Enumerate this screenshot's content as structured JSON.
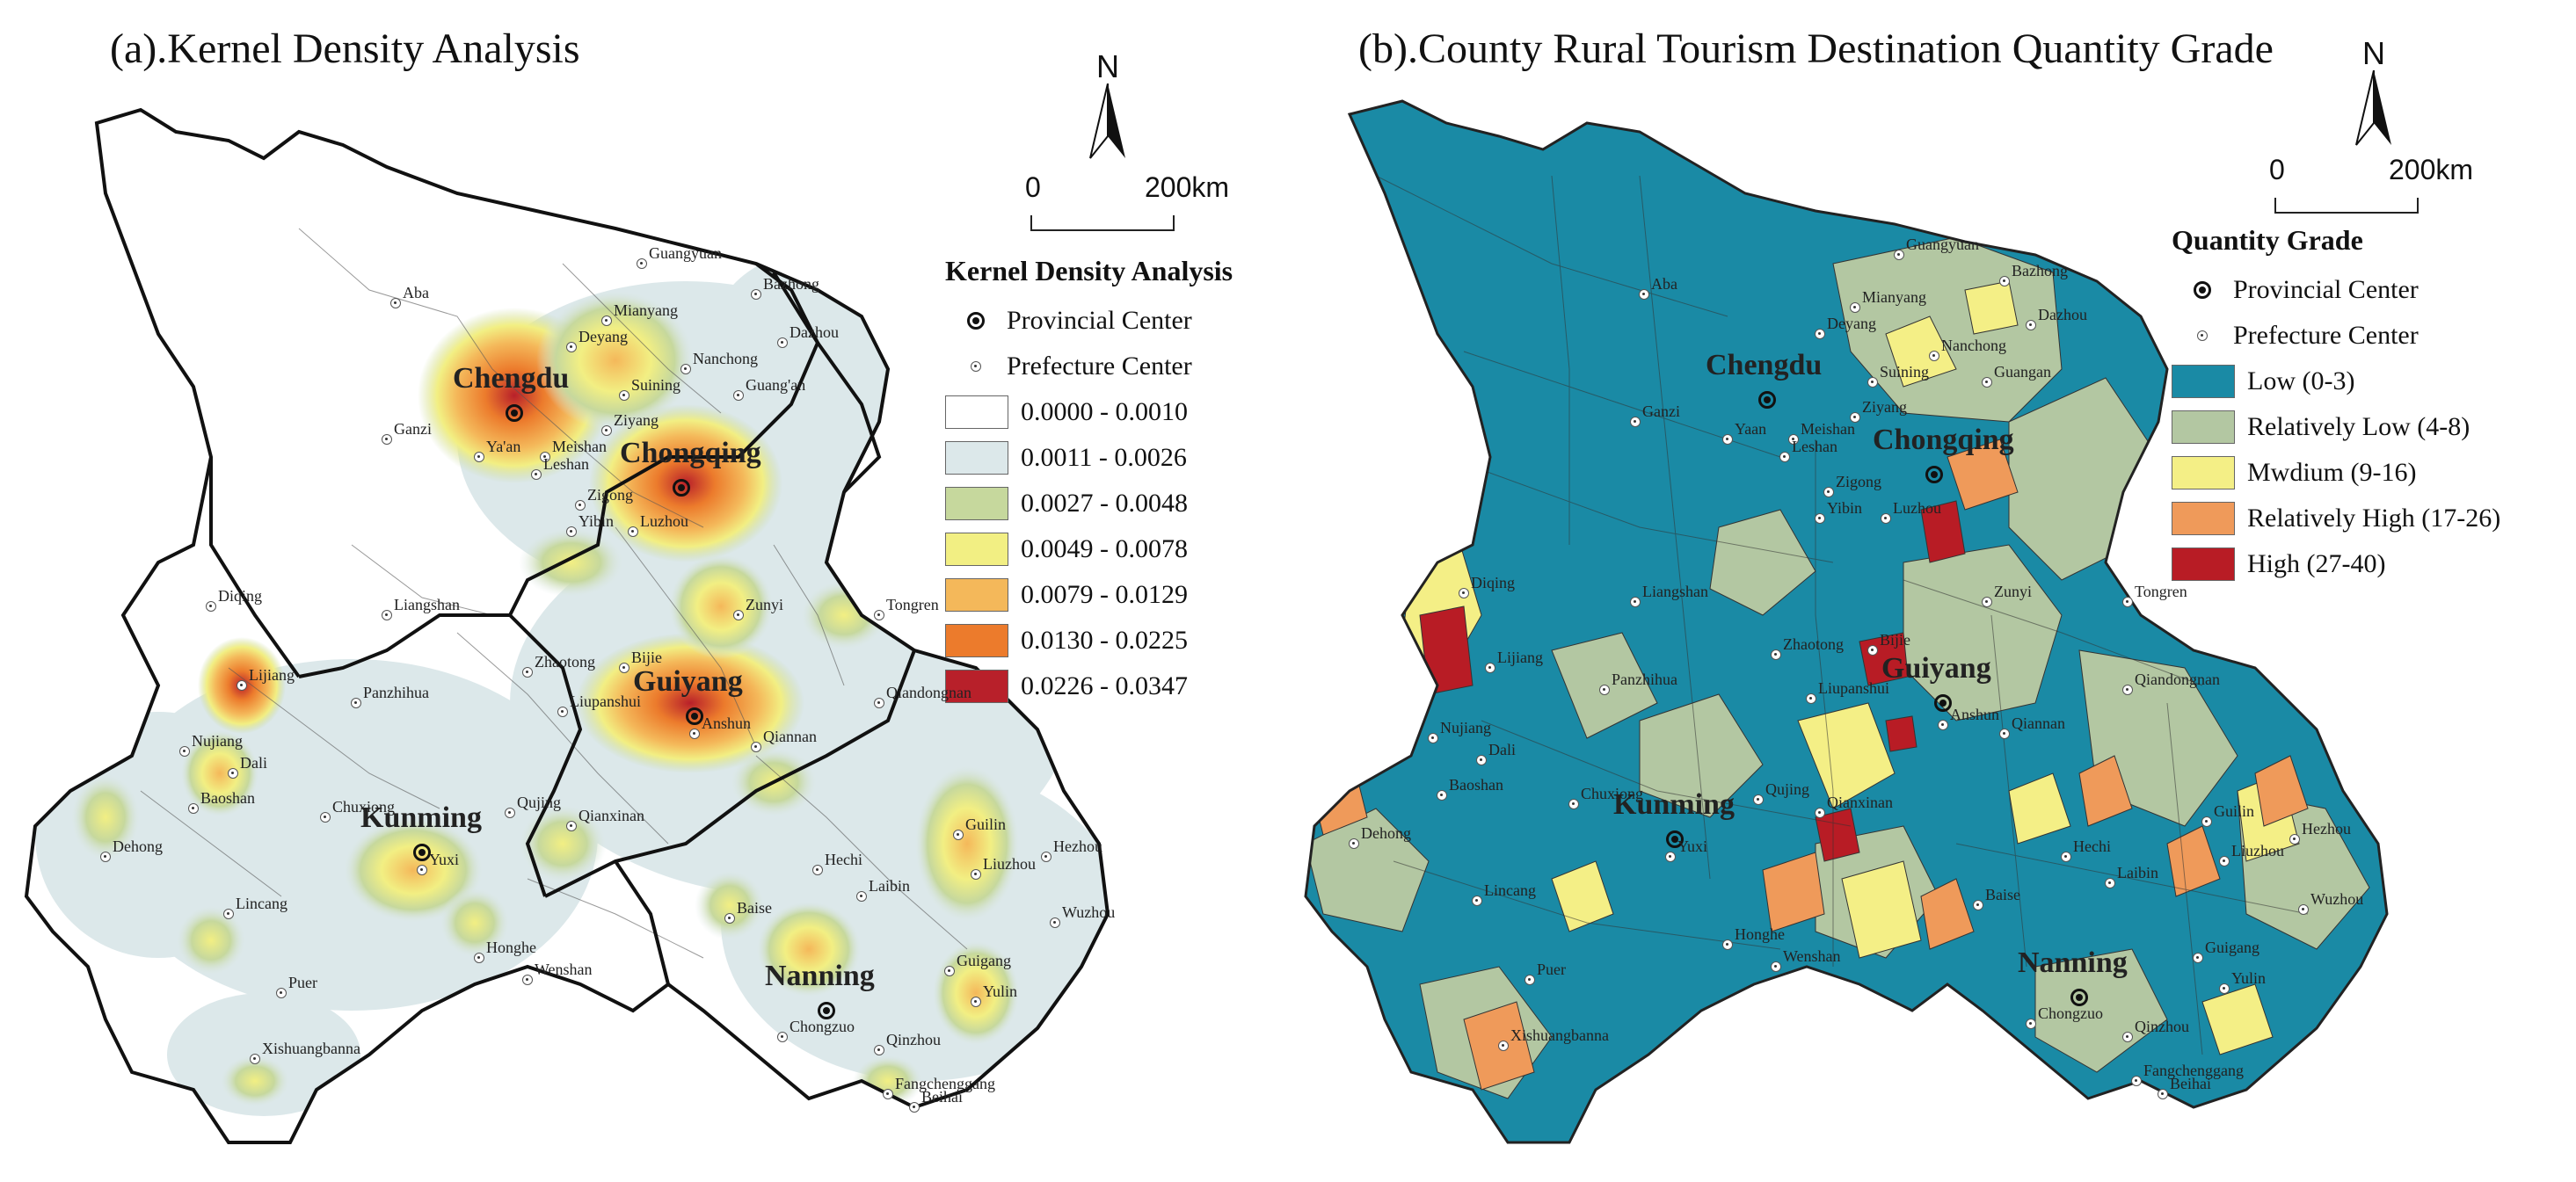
{
  "panel_a": {
    "title": "(a).Kernel Density Analysis",
    "north_label": "N",
    "scale": {
      "zero": "0",
      "distance": "200km"
    },
    "legend": {
      "title": "Kernel Density Analysis",
      "provincial_center": "Provincial  Center",
      "prefecture_center": "Prefecture  Center",
      "classes": [
        {
          "label": "0.0000 - 0.0010",
          "color": "#ffffff"
        },
        {
          "label": "0.0011 - 0.0026",
          "color": "#dce8ea"
        },
        {
          "label": "0.0027 - 0.0048",
          "color": "#c6d89d"
        },
        {
          "label": "0.0049 - 0.0078",
          "color": "#f2ef83"
        },
        {
          "label": "0.0079 - 0.0129",
          "color": "#f4b85a"
        },
        {
          "label": "0.0130 - 0.0225",
          "color": "#ec7b2c"
        },
        {
          "label": "0.0226 - 0.0347",
          "color": "#b8202a"
        }
      ]
    },
    "provincial_centers": [
      "Chengdu",
      "Chongqing",
      "Guiyang",
      "Kunming",
      "Nanning"
    ],
    "prefecture_centers": [
      "Aba",
      "Guangyuan",
      "Bazhong",
      "Mianyang",
      "Dazhou",
      "Deyang",
      "Nanchong",
      "Suining",
      "Guang'an",
      "Ganzi",
      "Ya'an",
      "Ziyang",
      "Meishan",
      "Leshan",
      "Zigong",
      "Yibin",
      "Luzhou",
      "Diqing",
      "Liangshan",
      "Zunyi",
      "Tongren",
      "Lijiang",
      "Zhaotong",
      "Bijie",
      "Panzhihua",
      "Liupanshui",
      "Anshun",
      "Qiandongnan",
      "Qiannan",
      "Nujiang",
      "Dali",
      "Baoshan",
      "Chuxiong",
      "Qujing",
      "Qianxinan",
      "Guilin",
      "Hezhou",
      "Dehong",
      "Yuxi",
      "Hechi",
      "Liuzhou",
      "Lincang",
      "Baise",
      "Laibin",
      "Wuzhou",
      "Honghe",
      "Wenshan",
      "Guigang",
      "Yulin",
      "Puer",
      "Chongzuo",
      "Qinzhou",
      "Xishuangbanna",
      "Fangchenggang",
      "Beihai"
    ]
  },
  "panel_b": {
    "title": "(b).County  Rural Tourism Destination Quantity Grade",
    "north_label": "N",
    "scale": {
      "zero": "0",
      "distance": "200km"
    },
    "legend": {
      "title": "Quantity Grade",
      "provincial_center": "Provincial Center",
      "prefecture_center": "Prefecture Center",
      "classes": [
        {
          "label": "Low (0-3)",
          "color": "#1a8aa5"
        },
        {
          "label": "Relatively Low (4-8)",
          "color": "#b3c7a2"
        },
        {
          "label": "Mwdium (9-16)",
          "color": "#f4ef86"
        },
        {
          "label": "Relatively High (17-26)",
          "color": "#ef9a5a"
        },
        {
          "label": "High (27-40)",
          "color": "#b81c25"
        }
      ]
    },
    "provincial_centers": [
      "Chengdu",
      "Chongqing",
      "Guiyang",
      "Kunming",
      "Nanning"
    ],
    "prefecture_centers": [
      "Aba",
      "Guangyuan",
      "Bazhong",
      "Mianyang",
      "Dazhou",
      "Deyang",
      "Nanchong",
      "Suining",
      "Guangan",
      "Ganzi",
      "Yaan",
      "Ziyang",
      "Meishan",
      "Leshan",
      "Zigong",
      "Yibin",
      "Luzhou",
      "Diqing",
      "Liangshan",
      "Zunyi",
      "Tongren",
      "Lijiang",
      "Zhaotong",
      "Bijie",
      "Panzhihua",
      "Liupanshui",
      "Anshun",
      "Qiandongnan",
      "Qiannan",
      "Nujiang",
      "Dali",
      "Baoshan",
      "Chuxiong",
      "Qujing",
      "Qianxinan",
      "Guilin",
      "Hezhou",
      "Dehong",
      "Yuxi",
      "Hechi",
      "Liuzhou",
      "Lincang",
      "Baise",
      "Laibin",
      "Wuzhou",
      "Honghe",
      "Wenshan",
      "Guigang",
      "Yulin",
      "Puer",
      "Chongzuo",
      "Qinzhou",
      "Xishuangbanna",
      "Fangchenggang",
      "Beihai"
    ]
  }
}
